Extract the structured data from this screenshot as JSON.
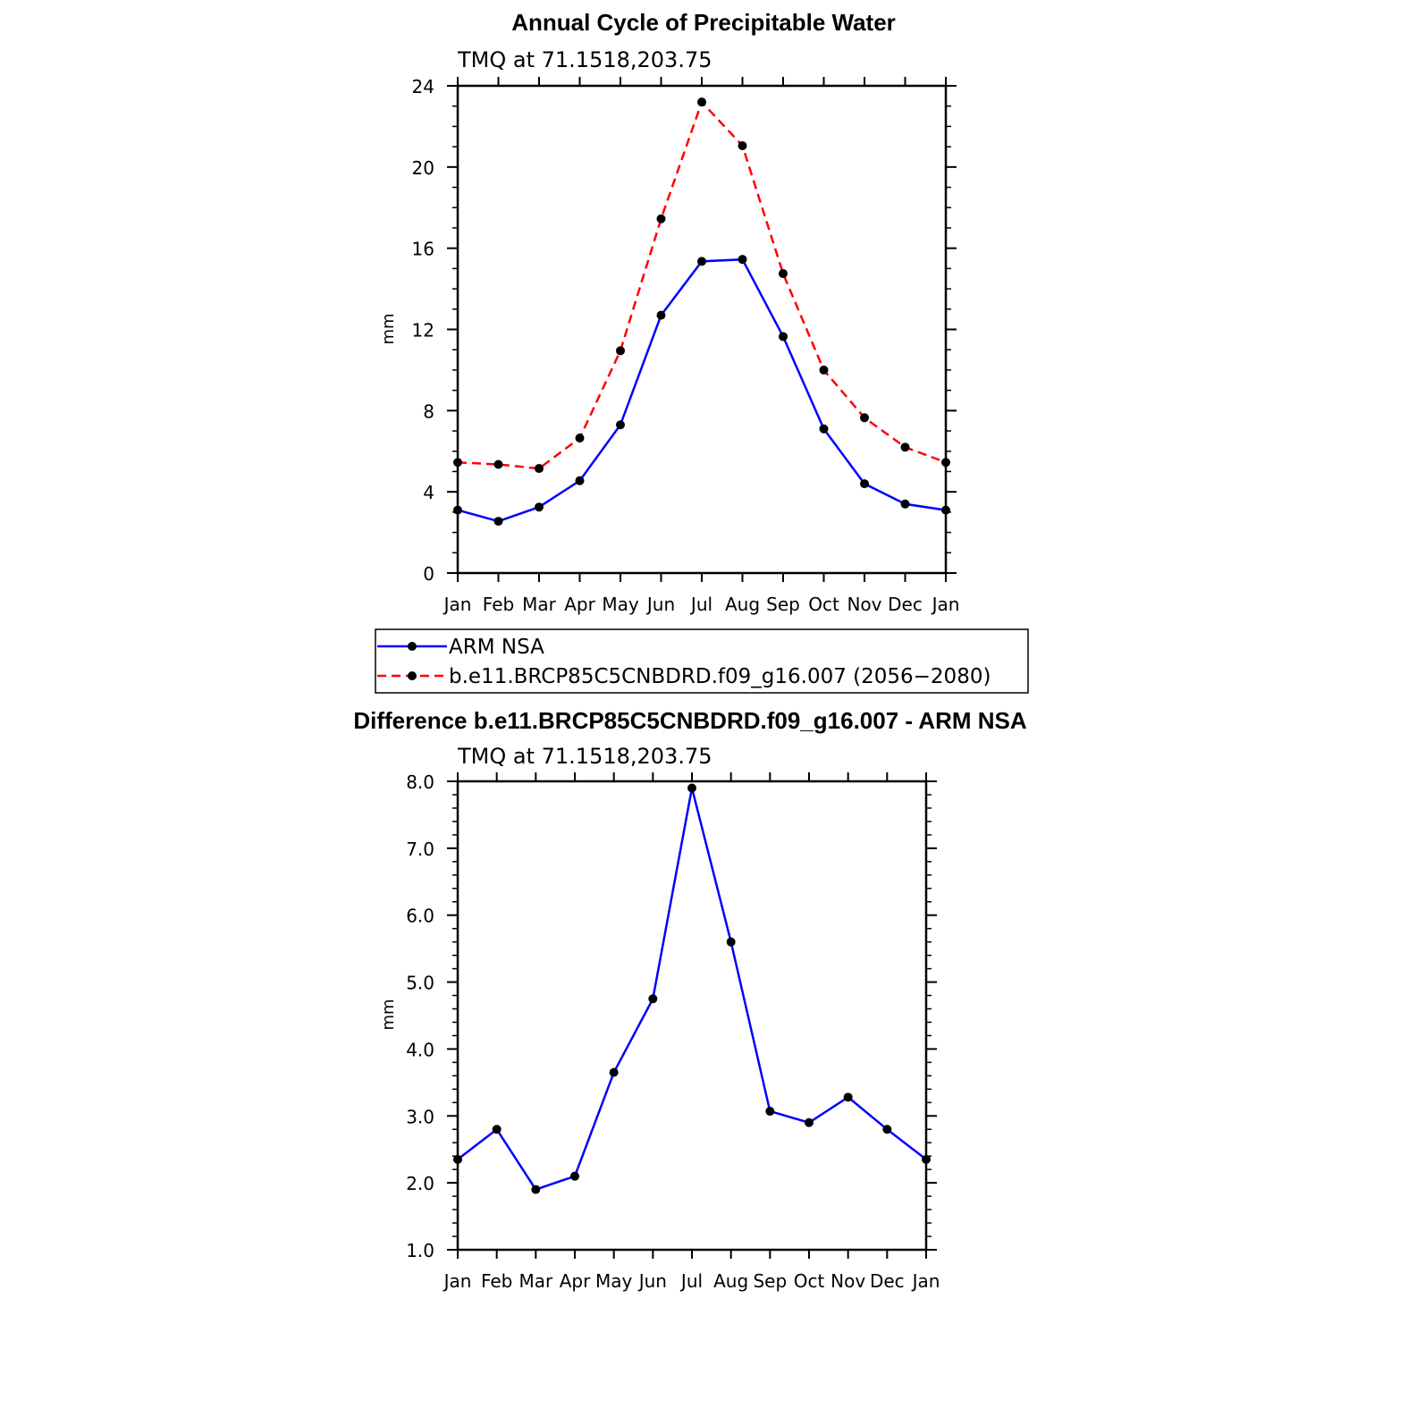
{
  "chart_data": [
    {
      "type": "line",
      "title": "Annual Cycle of Precipitable Water",
      "subtitle": "TMQ  at  71.1518,203.75",
      "ylabel": "mm",
      "xlabel": "",
      "categories": [
        "Jan",
        "Feb",
        "Mar",
        "Apr",
        "May",
        "Jun",
        "Jul",
        "Aug",
        "Sep",
        "Oct",
        "Nov",
        "Dec",
        "Jan"
      ],
      "ylim": [
        0,
        24
      ],
      "yticks": [
        "0",
        "4",
        "8",
        "12",
        "16",
        "20",
        "24"
      ],
      "ytick_values": [
        0,
        4,
        8,
        12,
        16,
        20,
        24
      ],
      "grid": false,
      "legend_position": "below",
      "series": [
        {
          "name": "ARM  NSA",
          "color": "#0000ff",
          "dash": "solid",
          "values": [
            3.1,
            2.55,
            3.25,
            4.55,
            7.3,
            12.7,
            15.35,
            15.45,
            11.65,
            7.1,
            4.4,
            3.4,
            3.1
          ]
        },
        {
          "name": "b.e11.BRCP85C5CNBDRD.f09_g16.007 (2056−2080)",
          "color": "#ff0000",
          "dash": "dashed",
          "values": [
            5.45,
            5.35,
            5.15,
            6.65,
            10.95,
            17.45,
            23.2,
            21.05,
            14.75,
            10.0,
            7.65,
            6.2,
            5.45
          ]
        }
      ]
    },
    {
      "type": "line",
      "title": "Difference b.e11.BRCP85C5CNBDRD.f09_g16.007 - ARM NSA",
      "subtitle": "TMQ  at  71.1518,203.75",
      "ylabel": "mm",
      "xlabel": "",
      "categories": [
        "Jan",
        "Feb",
        "Mar",
        "Apr",
        "May",
        "Jun",
        "Jul",
        "Aug",
        "Sep",
        "Oct",
        "Nov",
        "Dec",
        "Jan"
      ],
      "ylim": [
        1.0,
        8.0
      ],
      "yticks": [
        "1.0",
        "2.0",
        "3.0",
        "4.0",
        "5.0",
        "6.0",
        "7.0",
        "8.0"
      ],
      "ytick_values": [
        1,
        2,
        3,
        4,
        5,
        6,
        7,
        8
      ],
      "grid": false,
      "series": [
        {
          "color": "#0000ff",
          "dash": "solid",
          "values": [
            2.35,
            2.8,
            1.9,
            2.1,
            3.65,
            4.75,
            7.9,
            5.6,
            3.07,
            2.9,
            3.28,
            2.8,
            2.35
          ]
        }
      ]
    }
  ]
}
